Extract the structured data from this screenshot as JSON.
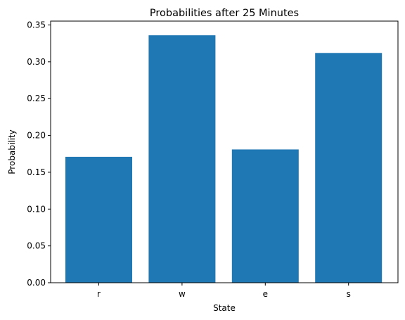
{
  "chart_data": {
    "type": "bar",
    "title": "Probabilities after 25 Minutes",
    "xlabel": "State",
    "ylabel": "Probability",
    "categories": [
      "r",
      "w",
      "e",
      "s"
    ],
    "values": [
      0.171,
      0.336,
      0.181,
      0.312
    ],
    "ylim": [
      0,
      0.35
    ],
    "yticks": [
      0.0,
      0.05,
      0.1,
      0.15,
      0.2,
      0.25,
      0.3,
      0.35
    ],
    "ytick_labels": [
      "0.00",
      "0.05",
      "0.10",
      "0.15",
      "0.20",
      "0.25",
      "0.30",
      "0.35"
    ],
    "bar_color": "#1f77b4",
    "grid": false,
    "legend": "none"
  }
}
